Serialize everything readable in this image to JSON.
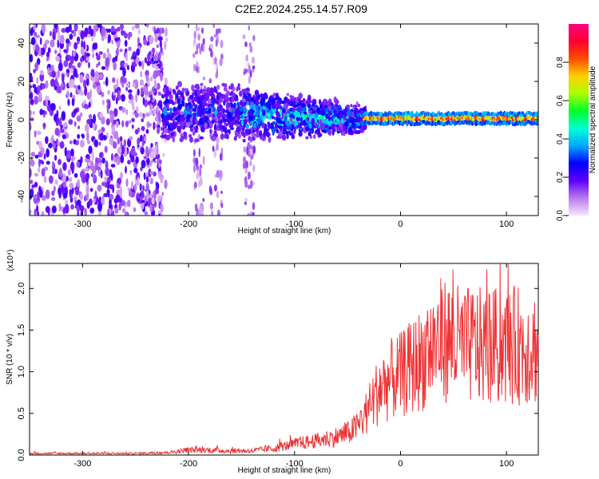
{
  "title": "C2E2.2024.255.14.57.R09",
  "chart_data": [
    {
      "type": "heatmap",
      "title": "C2E2.2024.255.14.57.R09",
      "xlabel": "Height of straight line (km)",
      "ylabel": "Frequency (Hz)",
      "xlim": [
        -350,
        130
      ],
      "ylim": [
        -50,
        50
      ],
      "x_ticks": [
        -300,
        -200,
        -100,
        0,
        100
      ],
      "y_ticks": [
        -40,
        -20,
        0,
        20,
        40
      ],
      "colorbar": {
        "label": "Normalized spectral amplitude",
        "range": [
          0,
          1
        ],
        "ticks": [
          "0.0",
          "0.2",
          "0.4",
          "0.6",
          "0.8"
        ],
        "colors": [
          "#f5e6fb",
          "#ba79ee",
          "#5e00ff",
          "#0000ff",
          "#00a6ff",
          "#00ffd5",
          "#00ff2a",
          "#a8ff00",
          "#ffd000",
          "#ff4d00",
          "#ff0030",
          "#ff007f"
        ]
      },
      "regions": [
        {
          "x_range": [
            -350,
            -220
          ],
          "freq_range": [
            -50,
            50
          ],
          "amplitude": "0.05-0.2",
          "description": "scattered broadband noise"
        },
        {
          "x_range": [
            -220,
            -150
          ],
          "freq_range": [
            -15,
            20
          ],
          "amplitude": "0.1-0.4",
          "description": "broad cluster"
        },
        {
          "x_range": [
            -150,
            -35
          ],
          "freq_range": [
            -10,
            12
          ],
          "amplitude": "0.2-0.5",
          "description": "narrowing band"
        },
        {
          "x_range": [
            -35,
            130
          ],
          "freq_range": [
            -2,
            4
          ],
          "amplitude": "0.5-0.9",
          "description": "narrow line near 0 Hz"
        }
      ]
    },
    {
      "type": "line",
      "xlabel": "Height of straight line (km)",
      "ylabel": "SNR (10 * v/v)",
      "yscale_label": "(x10⁴)",
      "xlim": [
        -350,
        130
      ],
      "ylim": [
        0,
        2.3
      ],
      "x_ticks": [
        -300,
        -200,
        -100,
        0,
        100
      ],
      "y_ticks": [
        "0.0",
        "0.5",
        "1.0",
        "1.5",
        "2.0"
      ],
      "series": [
        {
          "color": "#ee3333",
          "x": [
            -350,
            -300,
            -250,
            -220,
            -200,
            -180,
            -160,
            -140,
            -120,
            -100,
            -80,
            -60,
            -50,
            -40,
            -30,
            -20,
            -10,
            0,
            10,
            20,
            30,
            40,
            50,
            60,
            70,
            80,
            90,
            100,
            110,
            120,
            130
          ],
          "y": [
            0.02,
            0.02,
            0.02,
            0.03,
            0.06,
            0.06,
            0.05,
            0.05,
            0.08,
            0.13,
            0.17,
            0.22,
            0.26,
            0.35,
            0.55,
            0.8,
            0.9,
            0.95,
            1.05,
            1.15,
            1.3,
            1.4,
            1.35,
            1.3,
            1.32,
            1.28,
            1.3,
            1.3,
            1.32,
            1.3,
            1.3
          ]
        }
      ]
    }
  ]
}
